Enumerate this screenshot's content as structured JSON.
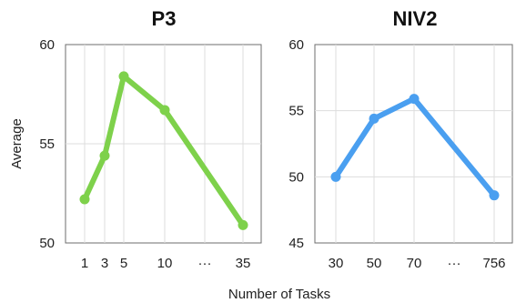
{
  "colors": {
    "p3": "#7ed14b",
    "niv2": "#4a9ff0"
  },
  "xlabel": "Number of Tasks",
  "ylabel": "Average",
  "chart_data": [
    {
      "type": "line",
      "title": "P3",
      "categories": [
        "1",
        "3",
        "5",
        "10",
        "...",
        "35"
      ],
      "category_labels": [
        "1",
        "3",
        "5",
        "10",
        "···",
        "35"
      ],
      "series": [
        {
          "x": [
            "1",
            "3",
            "5",
            "10",
            "35"
          ],
          "values": [
            52.2,
            54.4,
            58.4,
            56.7,
            50.9
          ]
        }
      ],
      "ylim": [
        50,
        60
      ],
      "yticks": [
        "50",
        "55",
        "60"
      ],
      "xlabel": "Number of Tasks",
      "ylabel": "Average",
      "grid": true,
      "legend": "none"
    },
    {
      "type": "line",
      "title": "NIV2",
      "categories": [
        "30",
        "50",
        "70",
        "...",
        "756"
      ],
      "category_labels": [
        "30",
        "50",
        "70",
        "···",
        "756"
      ],
      "series": [
        {
          "x": [
            "30",
            "50",
            "70",
            "756"
          ],
          "values": [
            50.0,
            54.4,
            55.9,
            48.6
          ]
        }
      ],
      "ylim": [
        45,
        60
      ],
      "yticks": [
        "45",
        "50",
        "55",
        "60"
      ],
      "xlabel": "Number of Tasks",
      "grid": true,
      "legend": "none"
    }
  ]
}
